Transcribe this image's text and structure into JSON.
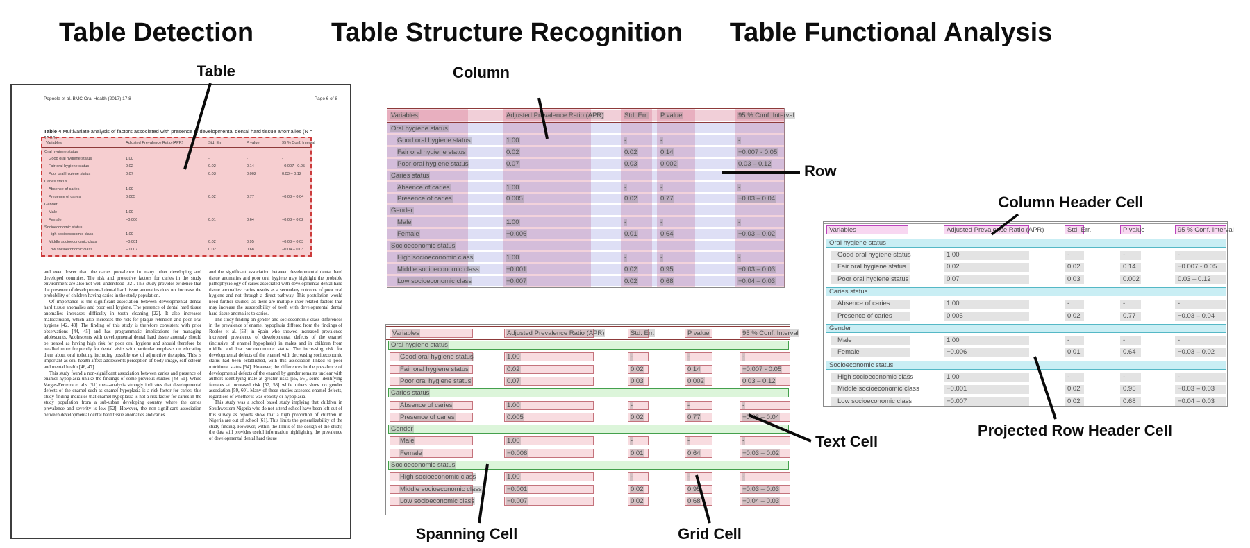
{
  "panels": {
    "detection": {
      "title": "Table Detection",
      "callout_table": "Table"
    },
    "structure": {
      "title": "Table Structure Recognition",
      "callout_column": "Column",
      "callout_row": "Row",
      "callout_spanning_cell": "Spanning Cell",
      "callout_grid_cell": "Grid Cell",
      "callout_text_cell": "Text Cell"
    },
    "functional": {
      "title": "Table Functional Analysis",
      "callout_column_header_cell": "Column Header Cell",
      "callout_projected_row_header_cell": "Projected Row Header Cell"
    }
  },
  "document": {
    "running_header_left": "Popoola et al. BMC Oral Health  (2017) 17:8",
    "running_header_right": "Page 6 of 8",
    "caption_label": "Table 4",
    "caption_text": " Multivariate analysis of factors associated with presence of developmental dental hard tissue anomalies (N = 1565)",
    "body_left": [
      "and even lower than the caries prevalence in many other developing and developed countries. The risk and protective factors for caries in the study environment are also not well understood [32]. This study provides evidence that the presence of developmental dental hard tissue anomalies does not increase the probability of children having caries in the study population.",
      "Of importance is the significant association between developmental dental hard tissue anomalies and poor oral hygiene. The presence of dental hard tissue anomalies increases difficulty in tooth cleaning [22]. It also increases malocclusion, which also increases the risk for plaque retention and poor oral hygiene [42, 43]. The finding of this study is therefore consistent with prior observations [44, 45] and has programmatic implications for managing adolescents. Adolescents with developmental dental hard tissue anomaly should be treated as having high risk for poor oral hygiene and should therefore be recalled more frequently for dental visits with particular emphasis on educating them about oral toileting including possible use of adjunctive therapies. This is important as oral health affect adolescents perception of body image, self-esteem and mental health [46, 47].",
      "This study found a non-significant association between caries and presence of enamel hypoplasia unlike the findings of some previous studies [48–51]. While Vargas-Ferreira et al’s [51] meta-analysis strongly indicates that developmental defects of the enamel such as enamel hypoplasia is a risk factor for caries, this study finding indicates that enamel hypoplasia is not a risk factor for caries in the study population from a sub-urban developing country where the caries prevalence and severity is low [52]. However, the non-significant association between developmental dental hard tissue anomalies and caries"
    ],
    "body_right": [
      "and the significant association between developmental dental hard tissue anomalies and poor oral hygiene may highlight the probable pathophysiology of caries associated with developmental dental hard tissue anomalies: caries results as a secondary outcome of poor oral hygiene and not through a direct pathway. This postulation would need further studies, as there are multiple inter-related factors that may increase the susceptibility of teeth with developmental dental hard tissue anomalies to caries.",
      "The study finding on gender and socioeconomic class differences in the prevalence of enamel hypoplasia differed from the findings of Robles et al. [53] in Spain who showed increased prevalence increased prevalence of developmental defects of the enamel (inclusive of enamel hypoplasia) in males and in children from middle and low socioeconomic status. The increasing risk for developmental defects of the enamel with decreasing socioeconomic status had been established, with this association linked to poor nutritional status [54]. However, the differences in the prevalence of developmental defects of the enamel by gender remains unclear with authors identifying male at greater risks [55, 56], some identifying females at increased risk [57, 58] while others show no gender association [59, 60]. Many of these studies assessed enamel defects, regardless of whether it was opacity or hypoplasia.",
      "This study was a school based study implying that children in Southwestern Nigeria who do not attend school have been left out of this survey as reports show that a high proportion of children in Nigeria are out of school [61]. This limits the generalizability of the study finding. However, within the limits of the design of the study, the data still provides useful information highlighting the prevalence of developmental dental hard tissue"
    ]
  },
  "table": {
    "columns": [
      "Variables",
      "Adjusted Prevalence Ratio (APR)",
      "Std. Err.",
      "P value",
      "95 % Conf. Interval"
    ],
    "rows": [
      {
        "label": "Oral hygiene status",
        "type": "section",
        "values": [
          "",
          "",
          "",
          ""
        ]
      },
      {
        "label": "Good oral hygiene status",
        "type": "data",
        "values": [
          "1.00",
          "-",
          "-",
          "-"
        ]
      },
      {
        "label": "Fair oral hygiene status",
        "type": "data",
        "values": [
          "0.02",
          "0.02",
          "0.14",
          "−0.007 - 0.05"
        ]
      },
      {
        "label": "Poor oral hygiene status",
        "type": "data",
        "values": [
          "0.07",
          "0.03",
          "0.002",
          "0.03 – 0.12"
        ]
      },
      {
        "label": "Caries status",
        "type": "section",
        "values": [
          "",
          "",
          "",
          ""
        ]
      },
      {
        "label": "Absence of caries",
        "type": "data",
        "values": [
          "1.00",
          "-",
          "-",
          "-"
        ]
      },
      {
        "label": "Presence of caries",
        "type": "data",
        "values": [
          "0.005",
          "0.02",
          "0.77",
          "−0.03 – 0.04"
        ]
      },
      {
        "label": "Gender",
        "type": "section",
        "values": [
          "",
          "",
          "",
          ""
        ]
      },
      {
        "label": "Male",
        "type": "data",
        "values": [
          "1.00",
          "-",
          "-",
          "-"
        ]
      },
      {
        "label": "Female",
        "type": "data",
        "values": [
          "−0.006",
          "0.01",
          "0.64",
          "−0.03 – 0.02"
        ]
      },
      {
        "label": "Socioeconomic status",
        "type": "section",
        "values": [
          "",
          "",
          "",
          ""
        ]
      },
      {
        "label": "High socioeconomic class",
        "type": "data",
        "values": [
          "1.00",
          "-",
          "-",
          "-"
        ]
      },
      {
        "label": "Middle socioeconomic class",
        "type": "data",
        "values": [
          "−0.001",
          "0.02",
          "0.95",
          "−0.03 – 0.03"
        ]
      },
      {
        "label": "Low socioeconomic class",
        "type": "data",
        "values": [
          "−0.007",
          "0.02",
          "0.68",
          "−0.04 – 0.03"
        ]
      }
    ]
  },
  "colors": {
    "detection_fill": "rgba(236,146,150,0.45)",
    "detection_dashed_border": "#cc3b3b",
    "row_band": "rgba(122,127,214,0.25)",
    "column_band": "rgba(208,95,125,0.28)",
    "header_band": "rgba(208,95,125,0.30)",
    "cell_fill": "#f8dce0",
    "cell_border": "#c4737c",
    "spanning_fill": "#dcf5da",
    "spanning_border": "#44a04c",
    "column_header_fill": "#f8d7f1",
    "column_header_border": "#bb44bb",
    "projected_row_header_fill": "#c9eef4",
    "projected_row_header_border": "#55b8c6",
    "text_highlight": "rgba(125,125,125,0.30)",
    "gray_text_cell": "#e3e3e3"
  }
}
